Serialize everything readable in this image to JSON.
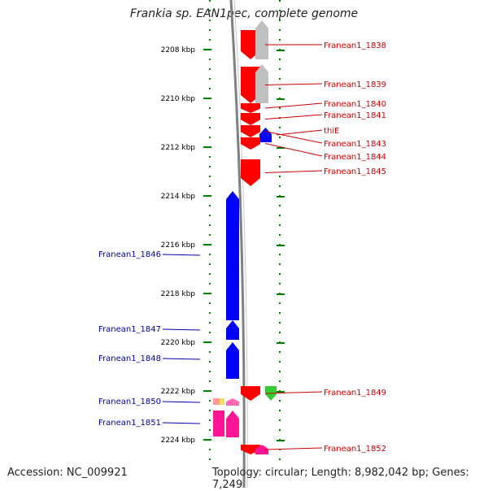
{
  "title": "Frankia sp. EAN1pec, complete genome",
  "footer": {
    "accession": "Accession: NC_009921",
    "topology": "Topology: circular; Length: 8,982,042 bp; Genes: 7,249"
  },
  "colors": {
    "forward": "#ff0000",
    "reverse": "#0000ff",
    "other": "#c0c0c0",
    "green": "#33cc33",
    "magenta": "#ff1493",
    "scale": "#008000",
    "backbone": "#808080"
  },
  "ruler": {
    "unit": "kbp",
    "kbp_start": 2206.8,
    "kbp_end": 2225.9,
    "tick_labels": [
      "2208 kbp",
      "2210 kbp",
      "2212 kbp",
      "2214 kbp",
      "2216 kbp",
      "2218 kbp",
      "2220 kbp",
      "2222 kbp",
      "2224 kbp"
    ],
    "tick_values": [
      2208,
      2210,
      2212,
      2214,
      2216,
      2218,
      2220,
      2222,
      2224
    ]
  },
  "genes": [
    {
      "label": "Franean1_1838",
      "track": "red",
      "strand": "-",
      "start": 2207.2,
      "end": 2208.4,
      "color": "#ff0000",
      "label_side": "right"
    },
    {
      "label": "",
      "track": "grey",
      "strand": "+",
      "start": 2206.8,
      "end": 2208.4,
      "color": "#c0c0c0",
      "label_side": "none"
    },
    {
      "label": "Franean1_1839",
      "track": "red",
      "strand": "-",
      "start": 2208.7,
      "end": 2210.2,
      "color": "#ff0000",
      "label_side": "right"
    },
    {
      "label": "",
      "track": "grey",
      "strand": "+",
      "start": 2208.6,
      "end": 2210.2,
      "color": "#c0c0c0",
      "label_side": "none"
    },
    {
      "label": "Franean1_1840",
      "track": "red",
      "strand": "-",
      "start": 2210.2,
      "end": 2210.6,
      "color": "#ff0000",
      "label_side": "right"
    },
    {
      "label": "Franean1_1841",
      "track": "red",
      "strand": "-",
      "start": 2210.6,
      "end": 2211.1,
      "color": "#ff0000",
      "label_side": "right"
    },
    {
      "label": "thiE",
      "track": "blue",
      "strand": "+",
      "start": 2211.2,
      "end": 2211.8,
      "color": "#0000ff",
      "label_side": "right"
    },
    {
      "label": "Franean1_1843",
      "track": "red",
      "strand": "-",
      "start": 2211.1,
      "end": 2211.6,
      "color": "#ff0000",
      "label_side": "right"
    },
    {
      "label": "Franean1_1844",
      "track": "red",
      "strand": "-",
      "start": 2211.6,
      "end": 2212.1,
      "color": "#ff0000",
      "label_side": "right"
    },
    {
      "label": "Franean1_1845",
      "track": "red",
      "strand": "-",
      "start": 2212.5,
      "end": 2213.6,
      "color": "#ff0000",
      "label_side": "right"
    },
    {
      "label": "Franean1_1846",
      "track": "left",
      "strand": "+",
      "start": 2213.8,
      "end": 2219.1,
      "color": "#0000ff",
      "label_side": "left"
    },
    {
      "label": "Franean1_1847",
      "track": "left",
      "strand": "+",
      "start": 2219.1,
      "end": 2219.9,
      "color": "#0000ff",
      "label_side": "left"
    },
    {
      "label": "Franean1_1848",
      "track": "left",
      "strand": "+",
      "start": 2220.0,
      "end": 2221.5,
      "color": "#0000ff",
      "label_side": "left"
    },
    {
      "label": "Franean1_1849",
      "track": "red",
      "strand": "-",
      "start": 2221.8,
      "end": 2222.4,
      "color": "#ff0000",
      "label_side": "right"
    },
    {
      "label": "",
      "track": "green",
      "strand": "-",
      "start": 2221.8,
      "end": 2222.4,
      "color": "#33cc33",
      "label_side": "none"
    },
    {
      "label": "Franean1_1850",
      "track": "left",
      "strand": "+",
      "start": 2222.3,
      "end": 2222.6,
      "color": "#ff69b4",
      "label_side": "left"
    },
    {
      "label": "Franean1_1851",
      "track": "left",
      "strand": "+",
      "start": 2222.8,
      "end": 2223.9,
      "color": "#ff1493",
      "label_side": "left"
    },
    {
      "label": "Franean1_1852",
      "track": "red",
      "strand": "-",
      "start": 2224.2,
      "end": 2224.6,
      "color": "#ff0000",
      "label_side": "right"
    },
    {
      "label": "",
      "track": "grey",
      "strand": "+",
      "start": 2224.2,
      "end": 2224.6,
      "color": "#ff1493",
      "label_side": "none"
    }
  ]
}
